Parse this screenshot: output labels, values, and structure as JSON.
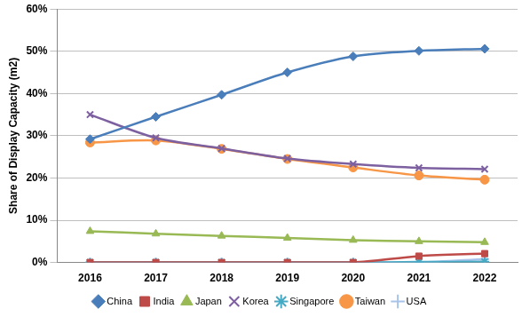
{
  "chart_data": {
    "type": "line",
    "y_label": "Share of Display Capacity (m2)",
    "categories": [
      "2016",
      "2017",
      "2018",
      "2019",
      "2020",
      "2021",
      "2022"
    ],
    "ylim": [
      0,
      60
    ],
    "yticks": [
      {
        "value": 0,
        "label": "0%"
      },
      {
        "value": 10,
        "label": "10%"
      },
      {
        "value": 20,
        "label": "20%"
      },
      {
        "value": 30,
        "label": "30%"
      },
      {
        "value": 40,
        "label": "40%"
      },
      {
        "value": 50,
        "label": "50%"
      },
      {
        "value": 60,
        "label": "60%"
      }
    ],
    "grid": true,
    "legend": "bottom",
    "series": [
      {
        "name": "China",
        "color": "#4a7ebb",
        "marker": "diamond",
        "values": [
          29.2,
          34.5,
          39.7,
          45.0,
          48.8,
          50.1,
          50.6
        ]
      },
      {
        "name": "India",
        "color": "#be4b48",
        "marker": "square",
        "values": [
          0,
          0,
          0,
          0,
          0,
          1.5,
          2.1
        ]
      },
      {
        "name": "Japan",
        "color": "#98b954",
        "marker": "triangle",
        "values": [
          7.4,
          6.8,
          6.3,
          5.8,
          5.3,
          5.0,
          4.8
        ]
      },
      {
        "name": "Korea",
        "color": "#7d60a0",
        "marker": "x",
        "values": [
          35.0,
          29.5,
          27.0,
          24.6,
          23.3,
          22.4,
          22.1
        ]
      },
      {
        "name": "Singapore",
        "color": "#46aac5",
        "marker": "star",
        "values": [
          0,
          0,
          0,
          0,
          0,
          0.1,
          0.2
        ]
      },
      {
        "name": "Taiwan",
        "color": "#f79646",
        "marker": "circle",
        "values": [
          28.4,
          28.9,
          26.9,
          24.5,
          22.5,
          20.6,
          19.6
        ]
      },
      {
        "name": "USA",
        "color": "#a9c4eb",
        "marker": "plus",
        "values": [
          0,
          0,
          0,
          0,
          0,
          0,
          0.8
        ]
      }
    ]
  }
}
